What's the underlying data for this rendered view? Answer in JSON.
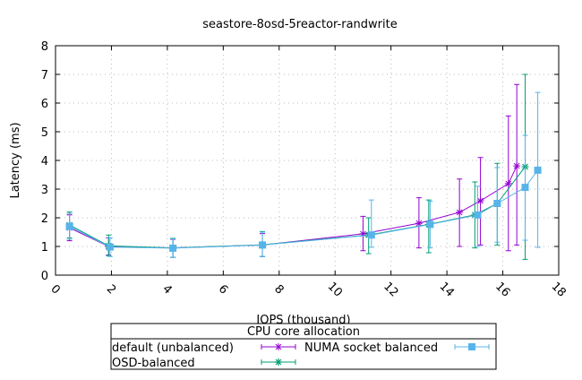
{
  "chart_data": {
    "type": "line",
    "title": "seastore-8osd-5reactor-randwrite",
    "xlabel": "IOPS (thousand)",
    "ylabel": "Latency (ms)",
    "xlim": [
      0,
      18
    ],
    "ylim": [
      0,
      8
    ],
    "xticks": [
      "0",
      "2",
      "4",
      "6",
      "8",
      "10",
      "12",
      "14",
      "16",
      "18"
    ],
    "yticks": [
      "0",
      "1",
      "2",
      "3",
      "4",
      "5",
      "6",
      "7",
      "8"
    ],
    "grid": true,
    "legend": {
      "title": "CPU core allocation",
      "placement": "bottom-outside"
    },
    "series": [
      {
        "name": "default (unbalanced)",
        "color": "#9400d3",
        "marker": "plus",
        "points": [
          {
            "x": 0.5,
            "y": 1.65,
            "lo": 1.2,
            "hi": 2.1
          },
          {
            "x": 1.9,
            "y": 1.0,
            "lo": 0.7,
            "hi": 1.3
          },
          {
            "x": 4.2,
            "y": 0.95,
            "lo": 0.62,
            "hi": 1.25
          },
          {
            "x": 7.4,
            "y": 1.05,
            "lo": 0.65,
            "hi": 1.45
          },
          {
            "x": 11.0,
            "y": 1.44,
            "lo": 0.85,
            "hi": 2.05
          },
          {
            "x": 13.0,
            "y": 1.81,
            "lo": 0.95,
            "hi": 2.7
          },
          {
            "x": 14.45,
            "y": 2.19,
            "lo": 1.0,
            "hi": 3.35
          },
          {
            "x": 15.2,
            "y": 2.59,
            "lo": 1.05,
            "hi": 4.1
          },
          {
            "x": 16.2,
            "y": 3.19,
            "lo": 0.85,
            "hi": 5.55
          },
          {
            "x": 16.5,
            "y": 3.81,
            "lo": 1.05,
            "hi": 6.65
          }
        ]
      },
      {
        "name": "OSD-balanced",
        "color": "#009e73",
        "marker": "star",
        "points": [
          {
            "x": 0.5,
            "y": 1.75,
            "lo": 1.3,
            "hi": 2.2
          },
          {
            "x": 1.9,
            "y": 1.02,
            "lo": 0.68,
            "hi": 1.4
          },
          {
            "x": 4.2,
            "y": 0.95,
            "lo": 0.62,
            "hi": 1.28
          },
          {
            "x": 7.4,
            "y": 1.06,
            "lo": 0.65,
            "hi": 1.52
          },
          {
            "x": 11.2,
            "y": 1.4,
            "lo": 0.75,
            "hi": 2.0
          },
          {
            "x": 13.35,
            "y": 1.77,
            "lo": 0.78,
            "hi": 2.62
          },
          {
            "x": 15.0,
            "y": 2.1,
            "lo": 0.95,
            "hi": 3.25
          },
          {
            "x": 15.8,
            "y": 2.5,
            "lo": 1.05,
            "hi": 3.9
          },
          {
            "x": 16.8,
            "y": 3.78,
            "lo": 0.55,
            "hi": 7.0
          }
        ]
      },
      {
        "name": "NUMA socket balanced",
        "color": "#56b4e9",
        "marker": "square",
        "points": [
          {
            "x": 0.5,
            "y": 1.7,
            "lo": 1.25,
            "hi": 2.15
          },
          {
            "x": 1.95,
            "y": 0.98,
            "lo": 0.65,
            "hi": 1.3
          },
          {
            "x": 4.2,
            "y": 0.94,
            "lo": 0.62,
            "hi": 1.26
          },
          {
            "x": 7.4,
            "y": 1.05,
            "lo": 0.65,
            "hi": 1.5
          },
          {
            "x": 11.3,
            "y": 1.4,
            "lo": 0.97,
            "hi": 2.62
          },
          {
            "x": 13.4,
            "y": 1.77,
            "lo": 0.95,
            "hi": 2.58
          },
          {
            "x": 15.1,
            "y": 2.1,
            "lo": 1.0,
            "hi": 3.1
          },
          {
            "x": 15.8,
            "y": 2.5,
            "lo": 1.15,
            "hi": 3.75
          },
          {
            "x": 16.8,
            "y": 3.06,
            "lo": 1.22,
            "hi": 4.87
          },
          {
            "x": 17.25,
            "y": 3.66,
            "lo": 0.97,
            "hi": 6.37
          }
        ]
      }
    ]
  }
}
